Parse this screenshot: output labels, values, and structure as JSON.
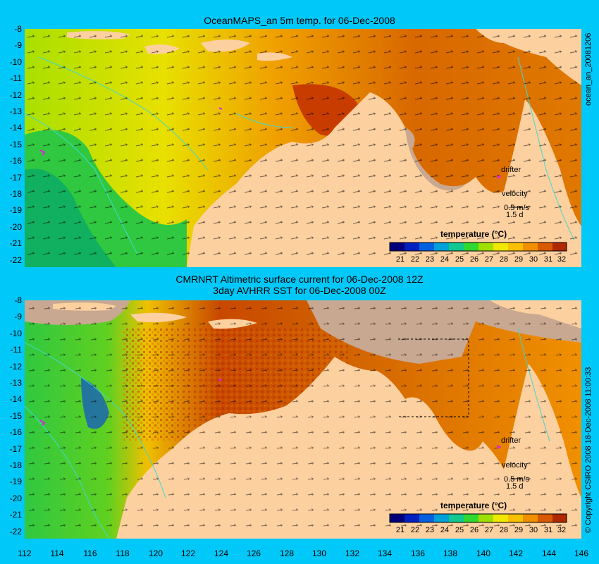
{
  "panels": [
    {
      "id": "top",
      "title": "OceanMAPS_an 5m temp. for 06-Dec-2008",
      "side_label": "ocean_an_20081206",
      "legend_title": "temperature (°C)",
      "drifter_label": "drifter",
      "velocity_label": "velocity",
      "velocity_scale": "0.5 m/s",
      "velocity_time": "1.5 d"
    },
    {
      "id": "bottom",
      "title_line1": "CMRNRT Altimetric surface current for 06-Dec-2008 12Z",
      "title_line2": "3day AVHRR SST for 06-Dec-2008 00Z",
      "side_label": "© Copyright CSIRO 2008   18-Dec-2008 11:00:33",
      "legend_title": "temperature (°C)",
      "drifter_label": "drifter",
      "velocity_label": "velocity",
      "velocity_scale": "0.5 m/s",
      "velocity_time": "1.5 d"
    }
  ],
  "lat_ticks": [
    "-8",
    "-9",
    "-10",
    "-11",
    "-12",
    "-13",
    "-14",
    "-15",
    "-16",
    "-17",
    "-18",
    "-19",
    "-20",
    "-21",
    "-22"
  ],
  "lon_ticks": [
    "112",
    "114",
    "116",
    "118",
    "120",
    "122",
    "124",
    "126",
    "128",
    "130",
    "132",
    "134",
    "136",
    "138",
    "140",
    "142",
    "144",
    "146"
  ],
  "colorbar_ticks": [
    "21",
    "22",
    "23",
    "24",
    "25",
    "26",
    "27",
    "28",
    "29",
    "30",
    "31",
    "32"
  ],
  "colorbar_colors": [
    "#00007a",
    "#0020c0",
    "#0060e0",
    "#00a0d8",
    "#10c890",
    "#30d830",
    "#a0e000",
    "#f0e800",
    "#f8c000",
    "#f09000",
    "#d85a00",
    "#b02800"
  ],
  "colors": {
    "background": "#00c8f8",
    "land": "#fdd0a0",
    "no_data": "#c8a890",
    "coast_line": "#40d8d0",
    "drifter": "#e020e0"
  }
}
